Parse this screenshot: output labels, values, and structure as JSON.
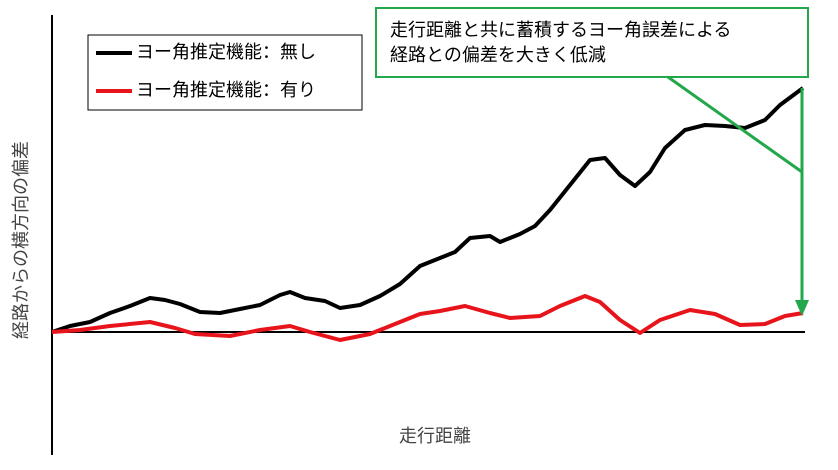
{
  "chart_data": {
    "type": "line",
    "ylabel": "経路からの横方向の偏差",
    "xlabel": "走行距離",
    "annotation": [
      "走行距離と共に蓄積するヨー角誤差による",
      "経路との偏差を大きく低減"
    ],
    "xlim": [
      0,
      753
    ],
    "ylim": [
      -123,
      317
    ],
    "series": [
      {
        "name": "ヨー角推定機能：無し",
        "color": "#000000",
        "x": [
          0,
          18,
          38,
          58,
          78,
          98,
          113,
          128,
          148,
          168,
          188,
          208,
          228,
          238,
          253,
          273,
          288,
          308,
          328,
          348,
          368,
          388,
          403,
          418,
          438,
          448,
          468,
          483,
          498,
          518,
          538,
          553,
          568,
          583,
          598,
          613,
          633,
          653,
          673,
          693,
          713,
          728,
          751
        ],
        "values": [
          0,
          6,
          10,
          19,
          26,
          34,
          32,
          28,
          20,
          19,
          23,
          27,
          37,
          40,
          34,
          31,
          24,
          27,
          36,
          48,
          66,
          74,
          80,
          94,
          96,
          90,
          98,
          106,
          122,
          147,
          172,
          174,
          157,
          146,
          160,
          184,
          202,
          207,
          206,
          204,
          212,
          227,
          244
        ]
      },
      {
        "name": "ヨー角推定機能：有り",
        "color": "#e8141c",
        "x": [
          0,
          28,
          58,
          98,
          123,
          143,
          178,
          208,
          238,
          258,
          288,
          318,
          348,
          368,
          388,
          413,
          438,
          458,
          488,
          508,
          533,
          548,
          568,
          588,
          608,
          638,
          663,
          688,
          713,
          733,
          751
        ],
        "values": [
          0,
          2,
          6,
          10,
          4,
          -2,
          -4,
          2,
          6,
          0,
          -8,
          -2,
          10,
          18,
          21,
          26,
          19,
          14,
          16,
          26,
          36,
          30,
          12,
          -1,
          12,
          22,
          18,
          7,
          8,
          16,
          19
        ]
      }
    ]
  }
}
